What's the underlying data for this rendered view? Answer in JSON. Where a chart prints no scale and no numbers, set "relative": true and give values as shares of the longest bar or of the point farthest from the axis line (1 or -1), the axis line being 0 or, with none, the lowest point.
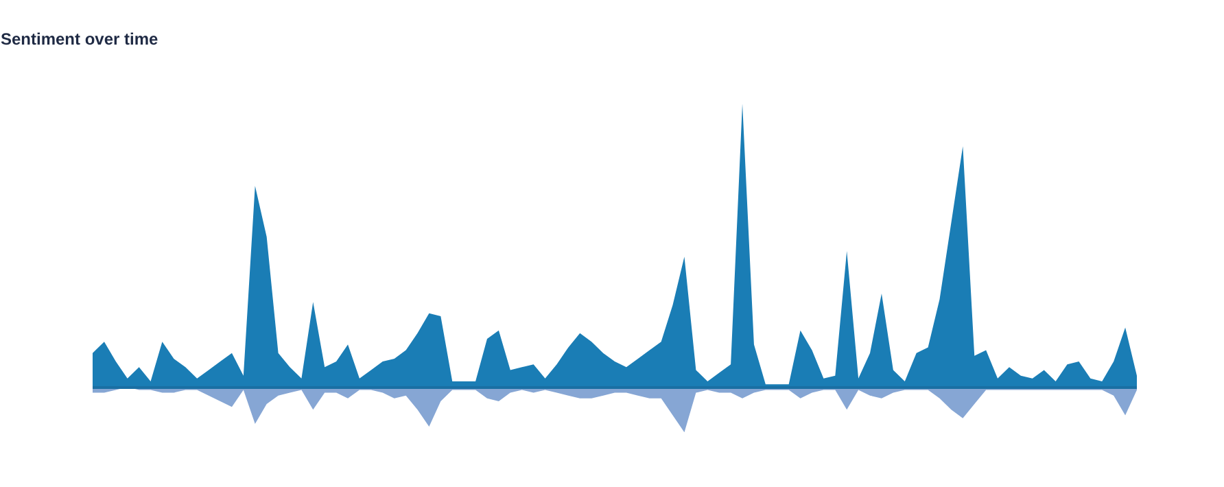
{
  "chart_data": {
    "type": "area",
    "title": "Sentiment over time",
    "relative": true,
    "categories": [
      null,
      null,
      null,
      null,
      null,
      null,
      null,
      null,
      null,
      null,
      null,
      null,
      null,
      null,
      null,
      null,
      null,
      null,
      null,
      null,
      null,
      null,
      null,
      null,
      null,
      null,
      null,
      null,
      null,
      null,
      null,
      null,
      null,
      null,
      null,
      null,
      null,
      null,
      null,
      null,
      null,
      null,
      null,
      null,
      null,
      null,
      null,
      null,
      null,
      null,
      null,
      null,
      null,
      null,
      null,
      null,
      null,
      null,
      null,
      null,
      null,
      null,
      null,
      null,
      null,
      null,
      null,
      null,
      null,
      null,
      null,
      null,
      null,
      null,
      null,
      null,
      null,
      null,
      null,
      null,
      null,
      null,
      null,
      null,
      null,
      null,
      null,
      null,
      null,
      null,
      null
    ],
    "series": [
      {
        "color": "#1a7db5",
        "values": [
          0.12,
          0.16,
          0.09,
          0.03,
          0.07,
          0.02,
          0.16,
          0.1,
          0.07,
          0.03,
          0.06,
          0.09,
          0.12,
          0.04,
          0.71,
          0.53,
          0.12,
          0.07,
          0.03,
          0.3,
          0.07,
          0.09,
          0.15,
          0.03,
          0.06,
          0.09,
          0.1,
          0.13,
          0.19,
          0.26,
          0.25,
          0.02,
          0.02,
          0.02,
          0.17,
          0.2,
          0.06,
          0.07,
          0.08,
          0.03,
          0.08,
          0.14,
          0.19,
          0.16,
          0.12,
          0.09,
          0.07,
          0.1,
          0.13,
          0.16,
          0.29,
          0.46,
          0.06,
          0.02,
          0.05,
          0.08,
          1,
          0.15,
          0.01,
          0.01,
          0.01,
          0.2,
          0.13,
          0.03,
          0.04,
          0.48,
          0.03,
          0.12,
          0.33,
          0.06,
          0.02,
          0.12,
          0.14,
          0.31,
          0.58,
          0.85,
          0.11,
          0.13,
          0.03,
          0.07,
          0.04,
          0.03,
          0.06,
          0.02,
          0.08,
          0.09,
          0.03,
          0.02,
          0.09,
          0.21,
          0.04
        ]
      },
      {
        "color": "#86a6d4",
        "values": [
          -0.02,
          -0.02,
          -0.01,
          0,
          -0.01,
          -0.01,
          -0.02,
          -0.02,
          -0.01,
          -0.01,
          -0.03,
          -0.05,
          -0.07,
          -0.01,
          -0.13,
          -0.06,
          -0.03,
          -0.02,
          -0.01,
          -0.08,
          -0.02,
          -0.02,
          -0.04,
          -0.01,
          -0.01,
          -0.02,
          -0.04,
          -0.03,
          -0.08,
          -0.14,
          -0.05,
          -0.01,
          -0.01,
          -0.01,
          -0.04,
          -0.05,
          -0.02,
          -0.01,
          -0.02,
          -0.01,
          -0.02,
          -0.03,
          -0.04,
          -0.04,
          -0.03,
          -0.02,
          -0.02,
          -0.03,
          -0.04,
          -0.04,
          -0.1,
          -0.16,
          -0.02,
          -0.01,
          -0.02,
          -0.02,
          -0.04,
          -0.02,
          -0.01,
          -0.01,
          -0.01,
          -0.04,
          -0.02,
          -0.01,
          -0.01,
          -0.08,
          -0.01,
          -0.03,
          -0.04,
          -0.02,
          -0.01,
          -0.01,
          -0.01,
          -0.04,
          -0.08,
          -0.11,
          -0.06,
          -0.01,
          -0.01,
          -0.01,
          -0.01,
          -0.01,
          -0.01,
          -0.01,
          -0.01,
          -0.01,
          -0.01,
          -0.01,
          -0.03,
          -0.1,
          -0.01
        ]
      }
    ]
  }
}
